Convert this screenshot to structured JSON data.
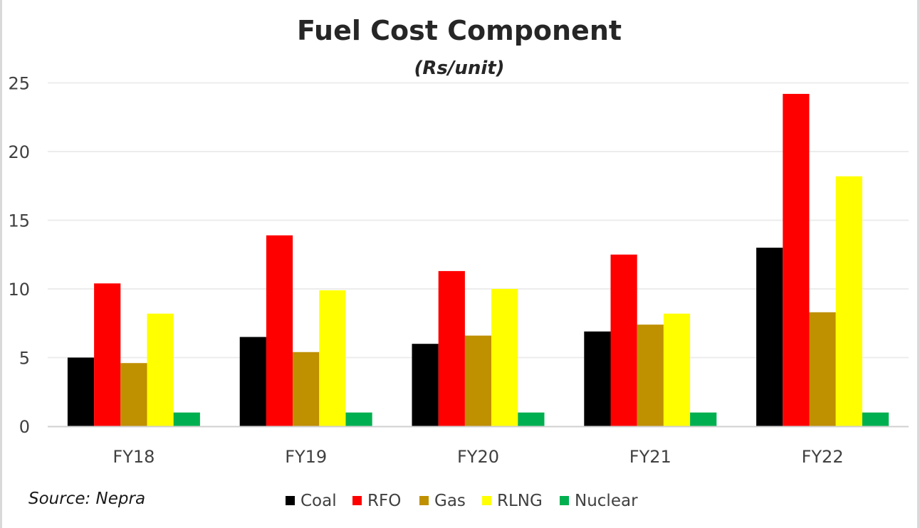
{
  "chart_data": {
    "type": "bar",
    "title": "Fuel Cost Component",
    "subtitle": "(Rs/unit)",
    "xlabel": "",
    "ylabel": "",
    "categories": [
      "FY18",
      "FY19",
      "FY20",
      "FY21",
      "FY22"
    ],
    "ylim": [
      0,
      25
    ],
    "yticks": [
      0,
      5,
      10,
      15,
      20,
      25
    ],
    "ytick_labels": [
      "0",
      "5",
      "10",
      "15",
      "20",
      "25"
    ],
    "grid": true,
    "legend_position": "bottom",
    "series": [
      {
        "name": "Coal",
        "color": "#000000",
        "values": [
          5.0,
          6.5,
          6.0,
          6.9,
          13.0
        ]
      },
      {
        "name": "RFO",
        "color": "#FF0000",
        "values": [
          10.4,
          13.9,
          11.3,
          12.5,
          24.2
        ]
      },
      {
        "name": "Gas",
        "color": "#BF9000",
        "values": [
          4.6,
          5.4,
          6.6,
          7.4,
          8.3
        ]
      },
      {
        "name": "RLNG",
        "color": "#FFFF00",
        "values": [
          8.2,
          9.9,
          10.0,
          8.2,
          18.2
        ]
      },
      {
        "name": "Nuclear",
        "color": "#00B050",
        "values": [
          1.0,
          1.0,
          1.0,
          1.0,
          1.0
        ]
      }
    ],
    "annotations": [
      "Source: Nepra"
    ]
  }
}
